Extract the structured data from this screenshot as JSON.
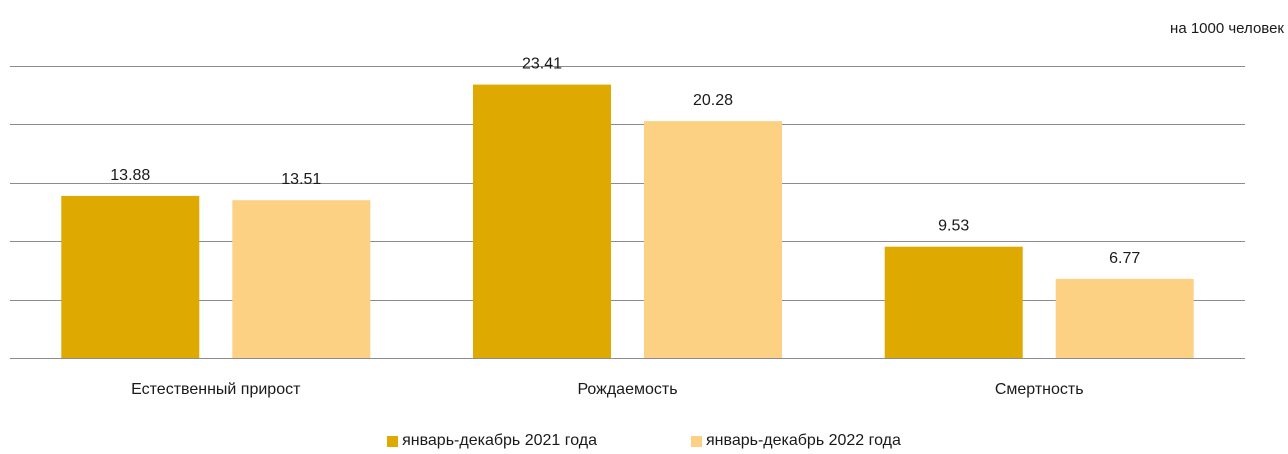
{
  "chart_data": {
    "type": "bar",
    "unit_note": "на 1000 человек",
    "categories": [
      "Естественный прирост",
      "Рождаемость",
      "Смертность"
    ],
    "series": [
      {
        "name": "январь-декабрь 2021 года",
        "values": [
          13.88,
          23.41,
          9.53
        ],
        "color": "#DEA900"
      },
      {
        "name": "январь-декабрь 2022 года",
        "values": [
          13.51,
          20.28,
          6.77
        ],
        "color": "#FDD184"
      }
    ],
    "ylim": [
      0,
      25
    ],
    "gridline_step": 5,
    "grid": true,
    "y_tick_labels_shown": false,
    "legend_position": "bottom"
  }
}
